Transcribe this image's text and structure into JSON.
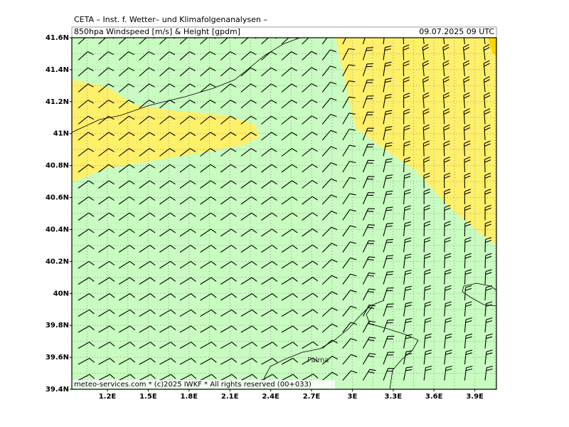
{
  "header": {
    "institute": "CETA – Inst. f. Wetter– und Klimafolgenanalysen –",
    "title": "850hpa Windspeed [m/s] & Height [gpdm]",
    "timestamp": "09.07.2025 09 UTC"
  },
  "axes": {
    "y_labels": [
      "41.6N",
      "41.4N",
      "41.2N",
      "41N",
      "40.8N",
      "40.6N",
      "40.4N",
      "40.2N",
      "40N",
      "39.8N",
      "39.6N",
      "39.4N"
    ],
    "x_labels": [
      "1.2E",
      "1.5E",
      "1.8E",
      "2.1E",
      "2.4E",
      "2.7E",
      "3E",
      "3.3E",
      "3.6E",
      "3.9E"
    ]
  },
  "map": {
    "place_label": "Palma",
    "footer": "meteo-services.com * (c)2025 IWKF * All rights reserved (00+033)"
  }
}
